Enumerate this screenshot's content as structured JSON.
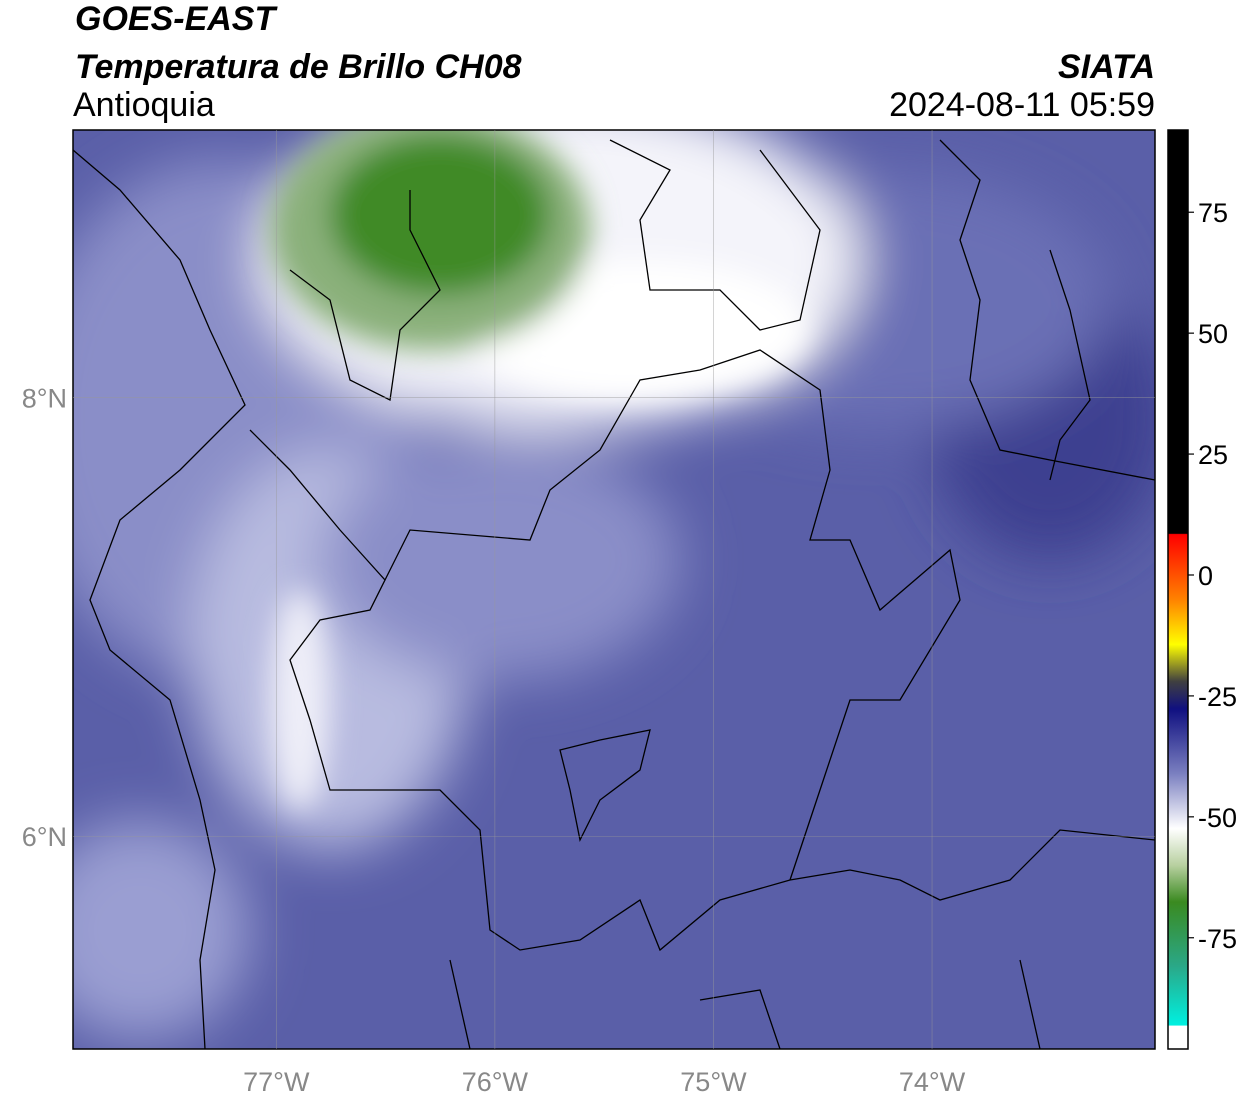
{
  "header": {
    "title": "GOES-EAST",
    "subtitle": "Temperatura de Brillo CH08",
    "region": "Antioquia",
    "source": "SIATA",
    "timestamp": "2024-08-11 05:59"
  },
  "map": {
    "xlim": [
      -77.93,
      -72.98
    ],
    "ylim": [
      5.03,
      9.22
    ],
    "xticks": [
      {
        "value": -77,
        "label": "77°W"
      },
      {
        "value": -76,
        "label": "76°W"
      },
      {
        "value": -75,
        "label": "75°W"
      },
      {
        "value": -74,
        "label": "74°W"
      }
    ],
    "yticks": [
      {
        "value": 8,
        "label": "8°N"
      },
      {
        "value": 6,
        "label": "6°N"
      }
    ],
    "grid": true
  },
  "colorbar": {
    "clim": [
      -98,
      92
    ],
    "ticks": [
      75,
      50,
      25,
      0,
      -25,
      -50,
      -75
    ]
  }
}
